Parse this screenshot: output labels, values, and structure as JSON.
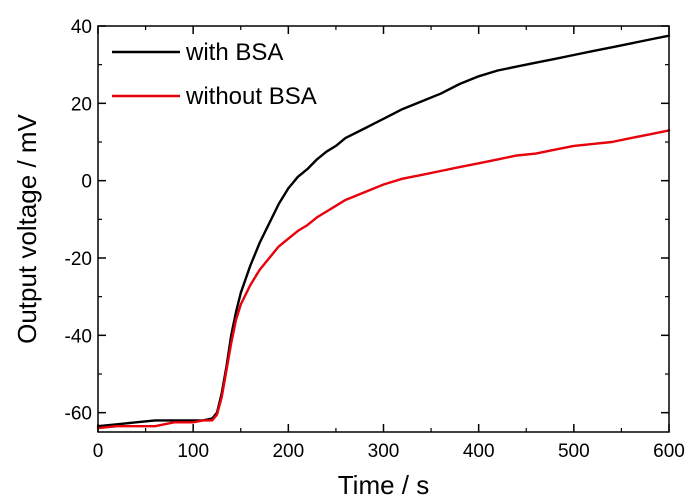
{
  "chart_data": {
    "type": "line",
    "title": "",
    "xlabel": "Time / s",
    "ylabel": "Output voltage / mV",
    "xlim": [
      0,
      600
    ],
    "ylim": [
      -65,
      40
    ],
    "x_ticks": [
      0,
      100,
      200,
      300,
      400,
      500,
      600
    ],
    "y_ticks": [
      -60,
      -40,
      -20,
      0,
      20,
      40
    ],
    "x_tick_labels": [
      "0",
      "100",
      "200",
      "300",
      "400",
      "500",
      "600"
    ],
    "y_tick_labels": [
      "-60",
      "-40",
      "-20",
      "0",
      "20",
      "40"
    ],
    "grid": false,
    "legend_position": "top-left",
    "series": [
      {
        "name": "with BSA",
        "color": "#000000",
        "x": [
          0,
          20,
          40,
          60,
          80,
          100,
          110,
          120,
          125,
          130,
          135,
          140,
          145,
          150,
          160,
          170,
          180,
          190,
          200,
          210,
          220,
          230,
          240,
          250,
          260,
          280,
          300,
          320,
          340,
          360,
          380,
          400,
          420,
          440,
          460,
          480,
          500,
          520,
          540,
          560,
          580,
          600
        ],
        "y": [
          -63.5,
          -63,
          -62.5,
          -62,
          -62,
          -62,
          -62,
          -61.5,
          -60,
          -55,
          -48,
          -40,
          -34,
          -29,
          -22,
          -16,
          -11,
          -6,
          -2,
          1,
          3,
          5.5,
          7.5,
          9,
          11,
          13.5,
          16,
          18.5,
          20.5,
          22.5,
          25,
          27,
          28.5,
          29.5,
          30.5,
          31.5,
          32.5,
          33.5,
          34.5,
          35.5,
          36.5,
          37.5
        ]
      },
      {
        "name": "without BSA",
        "color": "#e8000b",
        "x": [
          0,
          20,
          40,
          60,
          80,
          100,
          110,
          120,
          125,
          130,
          135,
          140,
          145,
          150,
          160,
          170,
          180,
          190,
          200,
          210,
          220,
          230,
          240,
          250,
          260,
          280,
          300,
          320,
          340,
          360,
          380,
          400,
          420,
          440,
          460,
          480,
          500,
          520,
          540,
          560,
          580,
          600
        ],
        "y": [
          -64,
          -63.5,
          -63.5,
          -63.5,
          -62.5,
          -62.5,
          -62,
          -62,
          -60.5,
          -56,
          -49,
          -42,
          -36,
          -32,
          -27,
          -23,
          -20,
          -17,
          -15,
          -13,
          -11.5,
          -9.5,
          -8,
          -6.5,
          -5,
          -3,
          -1,
          0.5,
          1.5,
          2.5,
          3.5,
          4.5,
          5.5,
          6.5,
          7,
          8,
          9,
          9.5,
          10,
          11,
          12,
          13
        ]
      }
    ]
  }
}
